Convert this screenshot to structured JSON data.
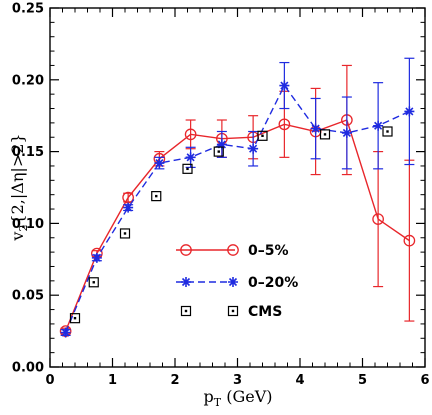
{
  "chart_data": {
    "type": "scatter",
    "xlabel": "p_T (GeV)",
    "ylabel": "v_2{2,|Δη|>2}",
    "xlim": [
      0,
      6
    ],
    "ylim": [
      0,
      0.25
    ],
    "grid": false,
    "legend_position": "lower-center",
    "x_ticks": [
      "0",
      "1",
      "2",
      "3",
      "4",
      "5",
      "6"
    ],
    "y_ticks": [
      "0.00",
      "0.05",
      "0.10",
      "0.15",
      "0.20",
      "0.25"
    ],
    "series": [
      {
        "name": "0–5%",
        "style": "solid-line-open-circles",
        "color": "#e8262b",
        "x": [
          0.25,
          0.75,
          1.25,
          1.75,
          2.25,
          2.75,
          3.25,
          3.75,
          4.25,
          4.75,
          5.25,
          5.75
        ],
        "y": [
          0.025,
          0.079,
          0.118,
          0.145,
          0.162,
          0.159,
          0.16,
          0.169,
          0.164,
          0.172,
          0.103,
          0.088
        ],
        "err": [
          0.002,
          0.002,
          0.003,
          0.005,
          0.01,
          0.013,
          0.015,
          0.023,
          0.03,
          0.038,
          0.047,
          0.056
        ]
      },
      {
        "name": "0–20%",
        "style": "dashed-line-stars",
        "color": "#1f2be0",
        "x": [
          0.25,
          0.75,
          1.25,
          1.75,
          2.25,
          2.75,
          3.25,
          3.75,
          4.25,
          4.75,
          5.25,
          5.75
        ],
        "y": [
          0.024,
          0.076,
          0.111,
          0.142,
          0.146,
          0.155,
          0.152,
          0.196,
          0.166,
          0.163,
          0.168,
          0.178
        ],
        "err": [
          0.002,
          0.002,
          0.002,
          0.004,
          0.007,
          0.009,
          0.012,
          0.016,
          0.021,
          0.025,
          0.03,
          0.037
        ]
      },
      {
        "name": "CMS",
        "style": "open-squares",
        "color": "#000000",
        "x": [
          0.4,
          0.7,
          1.2,
          1.7,
          2.2,
          2.7,
          3.4,
          4.4,
          5.4
        ],
        "y": [
          0.034,
          0.059,
          0.093,
          0.119,
          0.138,
          0.15,
          0.161,
          0.162,
          0.164
        ]
      }
    ]
  }
}
